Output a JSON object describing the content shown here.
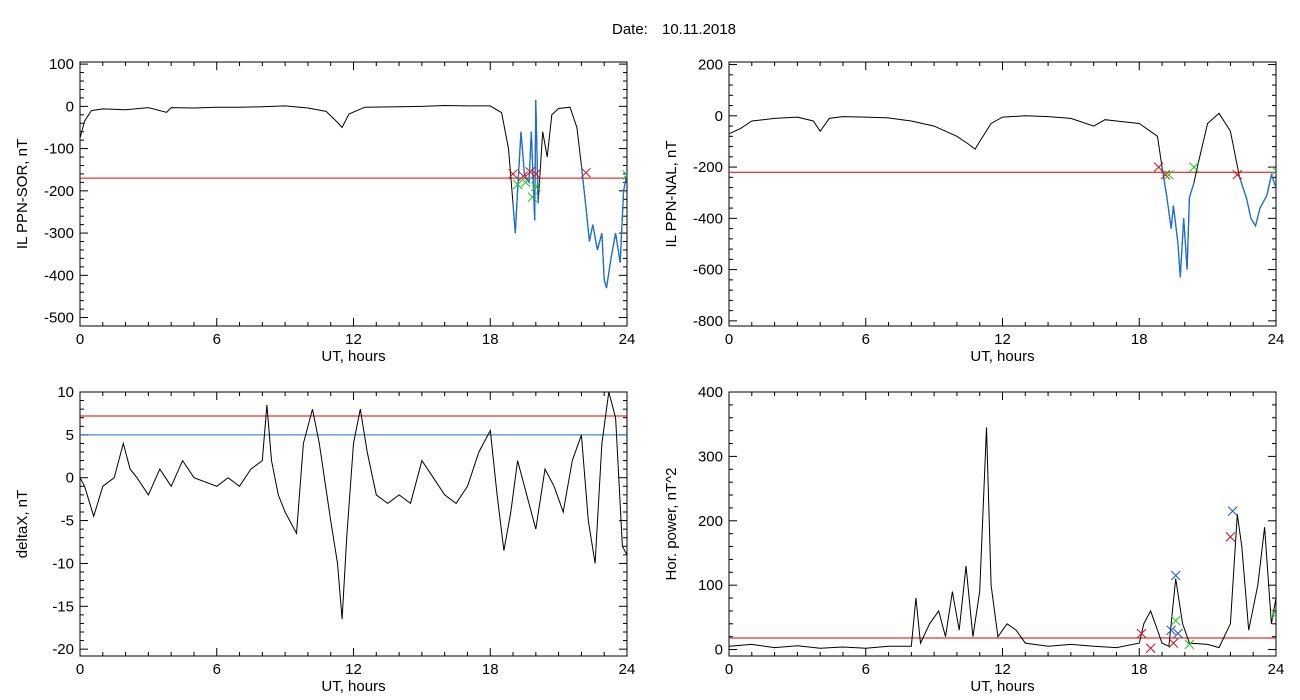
{
  "header": {
    "date_label": "Date:",
    "date_value": "10.11.2018"
  },
  "colors": {
    "trace": "#000000",
    "threshold_red": "#e00000",
    "threshold_blue": "#1a6fd6",
    "marker_green": "#22c02a",
    "marker_red": "#d01010",
    "marker_blue": "#1a4fd6"
  },
  "chart_data": [
    {
      "type": "line",
      "ylabel": "IL PPN-SOR, nT",
      "xlabel": "UT, hours",
      "xlim": [
        0,
        24
      ],
      "ylim": [
        -520,
        105
      ],
      "xticks": [
        "0",
        "6",
        "12",
        "18",
        "24"
      ],
      "yticks": [
        "100",
        "0",
        "-100",
        "-200",
        "-300",
        "-400",
        "-500"
      ],
      "threshold_red": -170,
      "series": [
        {
          "points": [
            [
              0,
              -75
            ],
            [
              0.2,
              -35
            ],
            [
              0.5,
              -10
            ],
            [
              1,
              -6
            ],
            [
              2,
              -8
            ],
            [
              3,
              -3
            ],
            [
              3.8,
              -14
            ],
            [
              4,
              -3
            ],
            [
              5,
              -4
            ],
            [
              6,
              -2
            ],
            [
              7,
              -2
            ],
            [
              8,
              -1
            ],
            [
              9,
              1
            ],
            [
              10,
              -4
            ],
            [
              10.8,
              -12
            ],
            [
              11.3,
              -38
            ],
            [
              11.5,
              -50
            ],
            [
              11.8,
              -18
            ],
            [
              12.5,
              -2
            ],
            [
              14,
              -1
            ],
            [
              15,
              0
            ],
            [
              16,
              2
            ],
            [
              17,
              1
            ],
            [
              18,
              1
            ],
            [
              18.5,
              -15
            ],
            [
              18.8,
              -100
            ],
            [
              19,
              -230
            ],
            [
              19.1,
              -300
            ],
            [
              19.2,
              -200
            ],
            [
              19.35,
              -60
            ],
            [
              19.5,
              -160
            ],
            [
              19.7,
              -180
            ],
            [
              19.8,
              -60
            ],
            [
              19.95,
              -270
            ],
            [
              20,
              15
            ],
            [
              20.1,
              -230
            ],
            [
              20.3,
              -60
            ],
            [
              20.5,
              -120
            ],
            [
              20.7,
              -20
            ],
            [
              21,
              -5
            ],
            [
              21.5,
              -2
            ],
            [
              21.8,
              -50
            ],
            [
              22,
              -140
            ],
            [
              22.2,
              -240
            ],
            [
              22.35,
              -320
            ],
            [
              22.5,
              -280
            ],
            [
              22.7,
              -340
            ],
            [
              22.9,
              -300
            ],
            [
              23,
              -410
            ],
            [
              23.1,
              -430
            ],
            [
              23.3,
              -360
            ],
            [
              23.5,
              -300
            ],
            [
              23.7,
              -370
            ],
            [
              23.85,
              -200
            ],
            [
              24,
              -160
            ]
          ]
        }
      ],
      "blue_segments": [
        [
          19,
          20.2
        ],
        [
          21.95,
          24
        ]
      ],
      "markers": [
        {
          "x": 19.0,
          "y": -160,
          "color": "red"
        },
        {
          "x": 19.45,
          "y": -165,
          "color": "red"
        },
        {
          "x": 19.75,
          "y": -155,
          "color": "red"
        },
        {
          "x": 20.0,
          "y": -160,
          "color": "red"
        },
        {
          "x": 22.2,
          "y": -157,
          "color": "red"
        },
        {
          "x": 19.2,
          "y": -185,
          "color": "green"
        },
        {
          "x": 19.55,
          "y": -180,
          "color": "green"
        },
        {
          "x": 19.85,
          "y": -215,
          "color": "green"
        },
        {
          "x": 20.0,
          "y": -190,
          "color": "green"
        },
        {
          "x": 24.0,
          "y": -162,
          "color": "green"
        }
      ]
    },
    {
      "type": "line",
      "ylabel": "IL PPN-NAL, nT",
      "xlabel": "UT, hours",
      "xlim": [
        0,
        24
      ],
      "ylim": [
        -820,
        210
      ],
      "xticks": [
        "0",
        "6",
        "12",
        "18",
        "24"
      ],
      "yticks": [
        "200",
        "0",
        "-200",
        "-400",
        "-600",
        "-800"
      ],
      "threshold_red": -220,
      "series": [
        {
          "points": [
            [
              0,
              -70
            ],
            [
              0.5,
              -50
            ],
            [
              1,
              -20
            ],
            [
              2,
              -10
            ],
            [
              3,
              -5
            ],
            [
              3.7,
              -20
            ],
            [
              4,
              -60
            ],
            [
              4.4,
              -10
            ],
            [
              5,
              -3
            ],
            [
              6,
              -5
            ],
            [
              7,
              -8
            ],
            [
              8,
              -20
            ],
            [
              9,
              -40
            ],
            [
              9.5,
              -60
            ],
            [
              10,
              -80
            ],
            [
              10.5,
              -110
            ],
            [
              10.8,
              -130
            ],
            [
              11,
              -100
            ],
            [
              11.5,
              -30
            ],
            [
              12,
              -5
            ],
            [
              13,
              0
            ],
            [
              14,
              -3
            ],
            [
              15,
              -10
            ],
            [
              16,
              -40
            ],
            [
              16.5,
              -15
            ],
            [
              17,
              -20
            ],
            [
              18,
              -30
            ],
            [
              18.8,
              -80
            ],
            [
              19,
              -200
            ],
            [
              19.2,
              -310
            ],
            [
              19.4,
              -440
            ],
            [
              19.5,
              -350
            ],
            [
              19.7,
              -500
            ],
            [
              19.8,
              -630
            ],
            [
              19.95,
              -400
            ],
            [
              20.1,
              -600
            ],
            [
              20.2,
              -320
            ],
            [
              20.4,
              -260
            ],
            [
              20.6,
              -180
            ],
            [
              21,
              -30
            ],
            [
              21.5,
              10
            ],
            [
              22,
              -60
            ],
            [
              22.2,
              -150
            ],
            [
              22.4,
              -240
            ],
            [
              22.7,
              -320
            ],
            [
              22.9,
              -400
            ],
            [
              23.1,
              -430
            ],
            [
              23.3,
              -360
            ],
            [
              23.6,
              -310
            ],
            [
              23.8,
              -230
            ],
            [
              24,
              -280
            ]
          ]
        }
      ],
      "blue_segments": [
        [
          18.9,
          20.5
        ],
        [
          22.3,
          24
        ]
      ],
      "markers": [
        {
          "x": 18.85,
          "y": -200,
          "color": "red"
        },
        {
          "x": 19.15,
          "y": -230,
          "color": "red"
        },
        {
          "x": 22.3,
          "y": -230,
          "color": "red"
        },
        {
          "x": 19.3,
          "y": -230,
          "color": "green"
        },
        {
          "x": 20.4,
          "y": -200,
          "color": "green"
        },
        {
          "x": 24.0,
          "y": -215,
          "color": "green"
        }
      ]
    },
    {
      "type": "line",
      "ylabel": "deltaX, nT",
      "xlabel": "UT, hours",
      "xlim": [
        0,
        24
      ],
      "ylim": [
        -20.8,
        10
      ],
      "xticks": [
        "0",
        "6",
        "12",
        "18",
        "24"
      ],
      "yticks": [
        "10",
        "5",
        "0",
        "-5",
        "-10",
        "-15",
        "-20"
      ],
      "threshold_red": 7.2,
      "threshold_blue": 5.0,
      "series": [
        {
          "points": [
            [
              0,
              0
            ],
            [
              0.2,
              -1
            ],
            [
              0.6,
              -4.5
            ],
            [
              1,
              -1
            ],
            [
              1.5,
              0
            ],
            [
              1.9,
              4
            ],
            [
              2.2,
              1
            ],
            [
              2.5,
              0
            ],
            [
              3,
              -2
            ],
            [
              3.5,
              1
            ],
            [
              4,
              -1
            ],
            [
              4.5,
              2
            ],
            [
              5,
              0
            ],
            [
              6,
              -1
            ],
            [
              6.5,
              0
            ],
            [
              7,
              -1
            ],
            [
              7.5,
              1
            ],
            [
              8,
              2
            ],
            [
              8.2,
              8.5
            ],
            [
              8.4,
              2
            ],
            [
              8.7,
              -2
            ],
            [
              9,
              -4
            ],
            [
              9.5,
              -6.5
            ],
            [
              9.8,
              4
            ],
            [
              10.2,
              8
            ],
            [
              10.5,
              4
            ],
            [
              11,
              -5
            ],
            [
              11.3,
              -10
            ],
            [
              11.5,
              -16.5
            ],
            [
              11.7,
              -7
            ],
            [
              12,
              4
            ],
            [
              12.3,
              8
            ],
            [
              12.6,
              3
            ],
            [
              13,
              -2
            ],
            [
              13.5,
              -3
            ],
            [
              14,
              -2
            ],
            [
              14.5,
              -3
            ],
            [
              15,
              2
            ],
            [
              15.5,
              0
            ],
            [
              16,
              -2
            ],
            [
              16.5,
              -3
            ],
            [
              17,
              -1
            ],
            [
              17.5,
              3
            ],
            [
              18,
              5.5
            ],
            [
              18.3,
              -2
            ],
            [
              18.6,
              -8.5
            ],
            [
              18.9,
              -4
            ],
            [
              19.2,
              2
            ],
            [
              19.6,
              -2
            ],
            [
              20,
              -6
            ],
            [
              20.4,
              1
            ],
            [
              20.8,
              -1
            ],
            [
              21.2,
              -4
            ],
            [
              21.6,
              2
            ],
            [
              22,
              5
            ],
            [
              22.3,
              -5
            ],
            [
              22.6,
              -10
            ],
            [
              22.9,
              4
            ],
            [
              23.2,
              10
            ],
            [
              23.5,
              7
            ],
            [
              23.8,
              -8
            ],
            [
              24,
              -9
            ]
          ]
        }
      ],
      "blue_segments": [],
      "markers": []
    },
    {
      "type": "line",
      "ylabel": "Hor. power, nT^2",
      "xlabel": "UT, hours",
      "xlim": [
        0,
        24
      ],
      "ylim": [
        -10,
        400
      ],
      "xticks": [
        "0",
        "6",
        "12",
        "18",
        "24"
      ],
      "yticks": [
        "400",
        "300",
        "200",
        "100",
        "0"
      ],
      "threshold_red": 18,
      "series": [
        {
          "points": [
            [
              0,
              5
            ],
            [
              1,
              8
            ],
            [
              2,
              3
            ],
            [
              3,
              6
            ],
            [
              4,
              2
            ],
            [
              5,
              4
            ],
            [
              6,
              2
            ],
            [
              7,
              5
            ],
            [
              8,
              5
            ],
            [
              8.2,
              80
            ],
            [
              8.4,
              10
            ],
            [
              8.8,
              40
            ],
            [
              9.2,
              60
            ],
            [
              9.5,
              20
            ],
            [
              9.8,
              90
            ],
            [
              10.1,
              30
            ],
            [
              10.4,
              130
            ],
            [
              10.7,
              20
            ],
            [
              11,
              90
            ],
            [
              11.3,
              345
            ],
            [
              11.5,
              100
            ],
            [
              11.8,
              20
            ],
            [
              12.2,
              40
            ],
            [
              12.6,
              30
            ],
            [
              13,
              10
            ],
            [
              14,
              5
            ],
            [
              15,
              8
            ],
            [
              16,
              5
            ],
            [
              17,
              3
            ],
            [
              18,
              10
            ],
            [
              18.2,
              40
            ],
            [
              18.5,
              60
            ],
            [
              18.8,
              30
            ],
            [
              19,
              10
            ],
            [
              19.3,
              5
            ],
            [
              19.6,
              110
            ],
            [
              19.9,
              40
            ],
            [
              20.2,
              10
            ],
            [
              21,
              8
            ],
            [
              21.5,
              3
            ],
            [
              22,
              40
            ],
            [
              22.3,
              210
            ],
            [
              22.5,
              160
            ],
            [
              22.8,
              30
            ],
            [
              23.2,
              100
            ],
            [
              23.5,
              190
            ],
            [
              23.8,
              40
            ],
            [
              24,
              80
            ]
          ]
        }
      ],
      "blue_segments": [],
      "markers": [
        {
          "x": 18.1,
          "y": 25,
          "color": "red"
        },
        {
          "x": 18.5,
          "y": 2,
          "color": "red"
        },
        {
          "x": 19.5,
          "y": 10,
          "color": "red"
        },
        {
          "x": 22.0,
          "y": 175,
          "color": "red"
        },
        {
          "x": 19.6,
          "y": 115,
          "color": "blue"
        },
        {
          "x": 19.4,
          "y": 30,
          "color": "blue"
        },
        {
          "x": 22.1,
          "y": 215,
          "color": "blue"
        },
        {
          "x": 19.7,
          "y": 25,
          "color": "blue"
        },
        {
          "x": 19.6,
          "y": 45,
          "color": "green"
        },
        {
          "x": 20.2,
          "y": 8,
          "color": "green"
        },
        {
          "x": 24.0,
          "y": 55,
          "color": "green"
        }
      ]
    }
  ]
}
